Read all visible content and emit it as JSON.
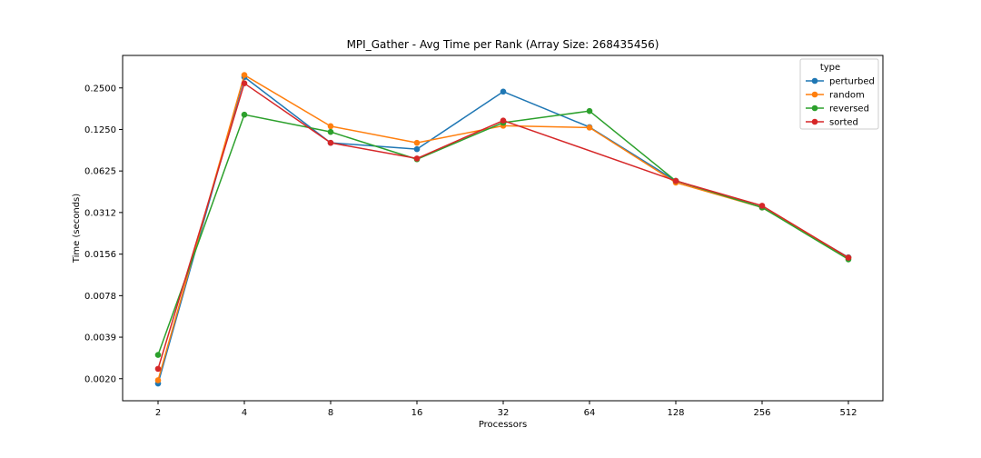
{
  "chart_data": {
    "type": "line",
    "title": "MPI_Gather - Avg Time per Rank (Array Size: 268435456)",
    "xlabel": "Processors",
    "ylabel": "Time (seconds)",
    "x_scale": "log2",
    "y_scale": "log2",
    "x": [
      2,
      4,
      8,
      16,
      32,
      64,
      128,
      256,
      512
    ],
    "x_tick_labels": [
      "2",
      "4",
      "8",
      "16",
      "32",
      "64",
      "128",
      "256",
      "512"
    ],
    "y_ticks": [
      0.00195,
      0.0039,
      0.0078,
      0.0156,
      0.03125,
      0.0625,
      0.125,
      0.25
    ],
    "y_tick_labels": [
      "0.0020",
      "0.0039",
      "0.0078",
      "0.0156",
      "0.0312",
      "0.0625",
      "0.1250",
      "0.2500"
    ],
    "ylim": [
      0.00135,
      0.43
    ],
    "grid": false,
    "legend": {
      "title": "type",
      "placement": "top-right"
    },
    "series": [
      {
        "name": "perturbed",
        "color": "#1f77b4",
        "values": [
          0.0018,
          0.3,
          0.1,
          0.09,
          0.235,
          0.13,
          0.053,
          0.034,
          0.0148
        ]
      },
      {
        "name": "random",
        "color": "#ff7f0e",
        "values": [
          0.0019,
          0.31,
          0.132,
          0.1,
          0.133,
          0.129,
          0.0515,
          0.034,
          0.0147
        ]
      },
      {
        "name": "reversed",
        "color": "#2ca02c",
        "values": [
          0.0029,
          0.16,
          0.12,
          0.076,
          0.14,
          0.17,
          0.053,
          0.034,
          0.0143
        ]
      },
      {
        "name": "sorted",
        "color": "#d62728",
        "values": [
          0.0023,
          0.27,
          0.1,
          0.077,
          0.145,
          null,
          0.053,
          0.035,
          0.0147
        ]
      }
    ]
  }
}
